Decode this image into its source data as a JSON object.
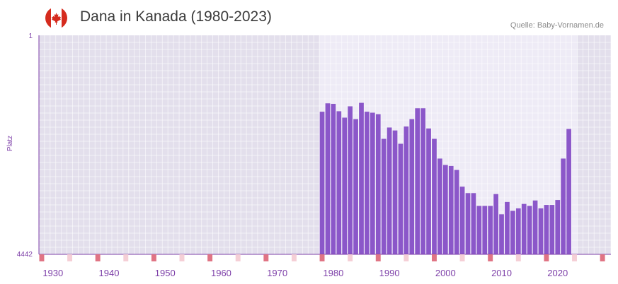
{
  "header": {
    "title": "Dana in Kanada (1980-2023)",
    "source": "Quelle: Baby-Vornamen.de",
    "flag": "canada-flag-icon"
  },
  "colors": {
    "bar": "#8b57c9",
    "plot_outer": "#e3dfec",
    "plot_inner": "#eeebf6",
    "axis": "#7d3fa8",
    "tick_mark": "#e07484",
    "tick_mark_light": "#f5cfd6",
    "text": "#7d3fa8"
  },
  "chart_data": {
    "type": "bar",
    "title": "Dana in Kanada (1980-2023)",
    "xlabel": "",
    "ylabel": "Platz",
    "ylim": [
      4442,
      1
    ],
    "y_axis_inverted": true,
    "y_tick_labels": [
      "1",
      "4442"
    ],
    "x_range": [
      1928,
      2029
    ],
    "x_ticks": [
      1930,
      1940,
      1950,
      1960,
      1970,
      1980,
      1990,
      2000,
      2010,
      2020
    ],
    "highlight_range": [
      1978,
      2023
    ],
    "grid": true,
    "categories": [
      1978,
      1979,
      1980,
      1981,
      1982,
      1983,
      1984,
      1985,
      1986,
      1987,
      1988,
      1989,
      1990,
      1991,
      1992,
      1993,
      1994,
      1995,
      1996,
      1997,
      1998,
      1999,
      2000,
      2001,
      2002,
      2003,
      2004,
      2005,
      2006,
      2007,
      2008,
      2009,
      2010,
      2011,
      2012,
      2013,
      2014,
      2015,
      2016,
      2017,
      2018,
      2019,
      2020,
      2021,
      2022
    ],
    "values": [
      1550,
      1380,
      1390,
      1540,
      1670,
      1440,
      1700,
      1370,
      1550,
      1570,
      1600,
      2100,
      1870,
      1930,
      2200,
      1850,
      1700,
      1480,
      1480,
      1890,
      2100,
      2500,
      2630,
      2650,
      2730,
      3070,
      3200,
      3200,
      3460,
      3460,
      3460,
      3220,
      3630,
      3380,
      3560,
      3510,
      3420,
      3460,
      3350,
      3510,
      3440,
      3440,
      3340,
      2500,
      1900
    ]
  }
}
